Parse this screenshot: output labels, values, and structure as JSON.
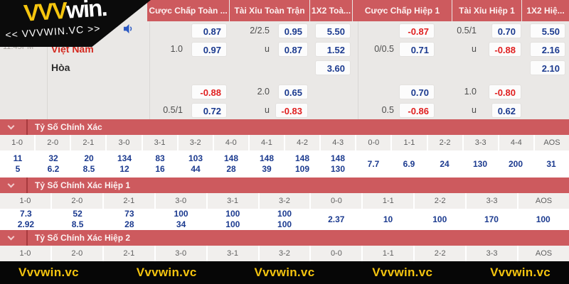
{
  "brand": {
    "logo_vvv": "VVV",
    "logo_win": "win.",
    "logo_sub": "<< VVVWIN.VC >>"
  },
  "colors": {
    "bar_red": "#cd5a5e",
    "odds_navy": "#1b3a8f",
    "negative_red": "#e01f1f",
    "brand_yellow": "#f5c50e",
    "bg_gray": "#eae8e6"
  },
  "match": {
    "time": "11:45PM",
    "away_team": "Việt Nam",
    "draw_label": "Hòa"
  },
  "market_headers": {
    "m1": "Cược Chấp Toàn ...",
    "m2": "Tài Xỉu Toàn Trận",
    "m3": "1X2 Toà...",
    "m4": "Cược Chấp Hiệp 1",
    "m5": "Tài Xỉu Hiệp 1",
    "m6": "1X2 Hiệ..."
  },
  "odds": {
    "rows": [
      {
        "b": "",
        "c": "0.87",
        "d": "2/2.5",
        "e": "0.95",
        "f": "5.50",
        "g": "",
        "h": "-0.87",
        "i": "0.5/1",
        "j": "0.70",
        "k": "5.50"
      },
      {
        "b": "1.0",
        "c": "0.97",
        "d": "u",
        "e": "0.87",
        "f": "1.52",
        "g": "0/0.5",
        "h": "0.71",
        "i": "u",
        "j": "-0.88",
        "k": "2.16"
      },
      {
        "b": "",
        "c": "",
        "d": "",
        "e": "",
        "f": "3.60",
        "g": "",
        "h": "",
        "i": "",
        "j": "",
        "k": "2.10"
      },
      {
        "b": "",
        "c": "-0.88",
        "d": "2.0",
        "e": "0.65",
        "f": "",
        "g": "",
        "h": "0.70",
        "i": "1.0",
        "j": "-0.80",
        "k": ""
      },
      {
        "b": "0.5/1",
        "c": "0.72",
        "d": "u",
        "e": "-0.83",
        "f": "",
        "g": "0.5",
        "h": "-0.86",
        "i": "u",
        "j": "0.62",
        "k": ""
      }
    ]
  },
  "sections": [
    {
      "title": "Tỷ Số Chính Xác",
      "columns": [
        "1-0",
        "2-0",
        "2-1",
        "3-0",
        "3-1",
        "3-2",
        "4-0",
        "4-1",
        "4-2",
        "4-3",
        "0-0",
        "1-1",
        "2-2",
        "3-3",
        "4-4",
        "AOS"
      ],
      "top": [
        "11",
        "32",
        "20",
        "134",
        "83",
        "103",
        "148",
        "148",
        "148",
        "148",
        "7.7",
        "6.9",
        "24",
        "130",
        "200",
        "31"
      ],
      "bottom": [
        "5",
        "6.2",
        "8.5",
        "12",
        "16",
        "44",
        "28",
        "39",
        "109",
        "130",
        "",
        "",
        "",
        "",
        "",
        ""
      ]
    },
    {
      "title": "Tỷ Số Chính Xác Hiệp 1",
      "columns": [
        "1-0",
        "2-0",
        "2-1",
        "3-0",
        "3-1",
        "3-2",
        "0-0",
        "1-1",
        "2-2",
        "3-3",
        "AOS"
      ],
      "top": [
        "7.3",
        "52",
        "73",
        "100",
        "100",
        "100",
        "2.37",
        "10",
        "100",
        "170",
        "100"
      ],
      "bottom": [
        "2.92",
        "8.5",
        "28",
        "34",
        "100",
        "100",
        "",
        "",
        "",
        "",
        ""
      ]
    },
    {
      "title": "Tỷ Số Chính Xác Hiệp 2",
      "columns": [
        "1-0",
        "2-0",
        "2-1",
        "3-0",
        "3-1",
        "3-2",
        "0-0",
        "1-1",
        "2-2",
        "3-3",
        "AOS"
      ],
      "top": [],
      "bottom": []
    }
  ],
  "watermarks": [
    "Vvvwin.vc",
    "Vvvwin.vc",
    "Vvvwin.vc",
    "Vvvwin.vc",
    "Vvvwin.vc"
  ]
}
